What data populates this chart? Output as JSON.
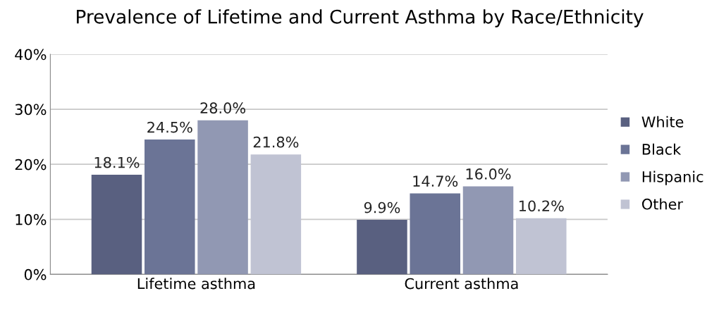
{
  "chart_data": {
    "type": "bar",
    "title": "Prevalence of Lifetime and Current Asthma by Race/Ethnicity",
    "categories": [
      "Lifetime asthma",
      "Current asthma"
    ],
    "series": [
      {
        "name": "White",
        "color": "#596080",
        "values": [
          18.1,
          9.9
        ],
        "value_labels": [
          "18.1%",
          "9.9%"
        ]
      },
      {
        "name": "Black",
        "color": "#6b7496",
        "values": [
          24.5,
          14.7
        ],
        "value_labels": [
          "24.5%",
          "14.7%"
        ]
      },
      {
        "name": "Hispanic",
        "color": "#9198b3",
        "values": [
          28.0,
          16.0
        ],
        "value_labels": [
          "28.0%",
          "16.0%"
        ]
      },
      {
        "name": "Other",
        "color": "#c0c3d3",
        "values": [
          21.8,
          10.2
        ],
        "value_labels": [
          "21.8%",
          "10.2%"
        ]
      }
    ],
    "ylim": [
      0,
      40
    ],
    "yticks": [
      {
        "value": 0,
        "label": "0%"
      },
      {
        "value": 10,
        "label": "10%"
      },
      {
        "value": 20,
        "label": "20%"
      },
      {
        "value": 30,
        "label": "30%"
      },
      {
        "value": 40,
        "label": "40%"
      }
    ],
    "grid": "y",
    "legend": "right"
  }
}
